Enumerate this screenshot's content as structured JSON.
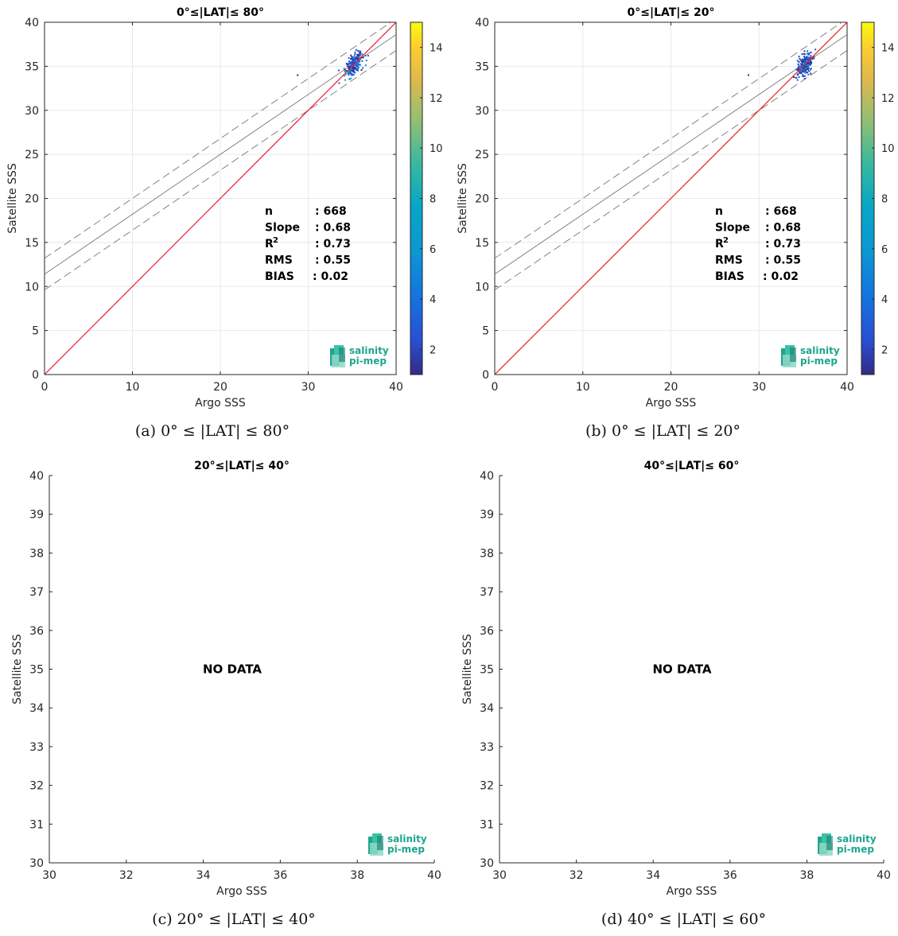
{
  "chart_data": [
    {
      "id": "a",
      "type": "scatter",
      "title": "0°≤|LAT|≤ 80°",
      "caption": "(a) 0° ≤ |LAT| ≤ 80°",
      "xlabel": "Argo SSS",
      "ylabel": "Satellite SSS",
      "xlim": [
        0,
        40
      ],
      "ylim": [
        0,
        40
      ],
      "xticks": [
        0,
        10,
        20,
        30,
        40
      ],
      "yticks": [
        0,
        5,
        10,
        15,
        20,
        25,
        30,
        35,
        40
      ],
      "grid": true,
      "colorbar": {
        "range": [
          1,
          15
        ],
        "ticks": [
          2,
          4,
          6,
          8,
          10,
          12,
          14
        ]
      },
      "stats": [
        {
          "label": "n",
          "value": ": 668"
        },
        {
          "label": "Slope",
          "value": ": 0.68"
        },
        {
          "label": "R",
          "sup": "2",
          "value": ": 0.73"
        },
        {
          "label": "RMS",
          "value": ": 0.55"
        },
        {
          "label": "BIAS",
          "value": ": 0.02"
        }
      ],
      "lines": {
        "identity": {
          "color": "#e8202a",
          "slope": 1,
          "intercept": 0
        },
        "fit": {
          "color": "#777777",
          "slope": 0.68,
          "intercept": 11.4
        },
        "fit_upper": {
          "color": "#777777",
          "slope": 0.68,
          "intercept": 13.2
        },
        "fit_lower": {
          "color": "#777777",
          "slope": 0.68,
          "intercept": 9.6
        }
      },
      "cluster": {
        "x_center": 35.2,
        "y_center": 35.2,
        "x_spread": 0.9,
        "n": 668
      },
      "outliers": [
        {
          "x": 28.8,
          "y": 34.0
        }
      ],
      "logo": {
        "line1": "salinity",
        "line2": "pi-mep"
      }
    },
    {
      "id": "b",
      "type": "scatter",
      "title": "0°≤|LAT|≤ 20°",
      "caption": "(b) 0° ≤ |LAT| ≤ 20°",
      "xlabel": "Argo SSS",
      "ylabel": "Satellite SSS",
      "xlim": [
        0,
        40
      ],
      "ylim": [
        0,
        40
      ],
      "xticks": [
        0,
        10,
        20,
        30,
        40
      ],
      "yticks": [
        0,
        5,
        10,
        15,
        20,
        25,
        30,
        35,
        40
      ],
      "grid": true,
      "colorbar": {
        "range": [
          1,
          15
        ],
        "ticks": [
          2,
          4,
          6,
          8,
          10,
          12,
          14
        ]
      },
      "stats": [
        {
          "label": "n",
          "value": ": 668"
        },
        {
          "label": "Slope",
          "value": ": 0.68"
        },
        {
          "label": "R",
          "sup": "2",
          "value": ": 0.73"
        },
        {
          "label": "RMS",
          "value": ": 0.55"
        },
        {
          "label": "BIAS",
          "value": ": 0.02"
        }
      ],
      "lines": {
        "identity": {
          "color": "#e8202a",
          "slope": 1,
          "intercept": 0
        },
        "fit": {
          "color": "#777777",
          "slope": 0.68,
          "intercept": 11.4
        },
        "fit_upper": {
          "color": "#777777",
          "slope": 0.68,
          "intercept": 13.2
        },
        "fit_lower": {
          "color": "#777777",
          "slope": 0.68,
          "intercept": 9.6
        }
      },
      "cluster": {
        "x_center": 35.2,
        "y_center": 35.2,
        "x_spread": 0.9,
        "n": 668
      },
      "outliers": [
        {
          "x": 28.8,
          "y": 34.0
        }
      ],
      "logo": {
        "line1": "salinity",
        "line2": "pi-mep"
      }
    },
    {
      "id": "c",
      "type": "scatter",
      "title": "20°≤|LAT|≤ 40°",
      "caption": "(c) 20° ≤ |LAT| ≤ 40°",
      "xlabel": "Argo SSS",
      "ylabel": "Satellite SSS",
      "xlim": [
        30,
        40
      ],
      "ylim": [
        30,
        40
      ],
      "xticks": [
        30,
        32,
        34,
        36,
        38,
        40
      ],
      "yticks": [
        30,
        31,
        32,
        33,
        34,
        35,
        36,
        37,
        38,
        39,
        40
      ],
      "grid": false,
      "message": "NO DATA",
      "logo": {
        "line1": "salinity",
        "line2": "pi-mep"
      }
    },
    {
      "id": "d",
      "type": "scatter",
      "title": "40°≤|LAT|≤ 60°",
      "caption": "(d) 40° ≤ |LAT| ≤ 60°",
      "xlabel": "Argo SSS",
      "ylabel": "Satellite SSS",
      "xlim": [
        30,
        40
      ],
      "ylim": [
        30,
        40
      ],
      "xticks": [
        30,
        32,
        34,
        36,
        38,
        40
      ],
      "yticks": [
        30,
        31,
        32,
        33,
        34,
        35,
        36,
        37,
        38,
        39,
        40
      ],
      "grid": false,
      "message": "NO DATA",
      "logo": {
        "line1": "salinity",
        "line2": "pi-mep"
      }
    }
  ]
}
